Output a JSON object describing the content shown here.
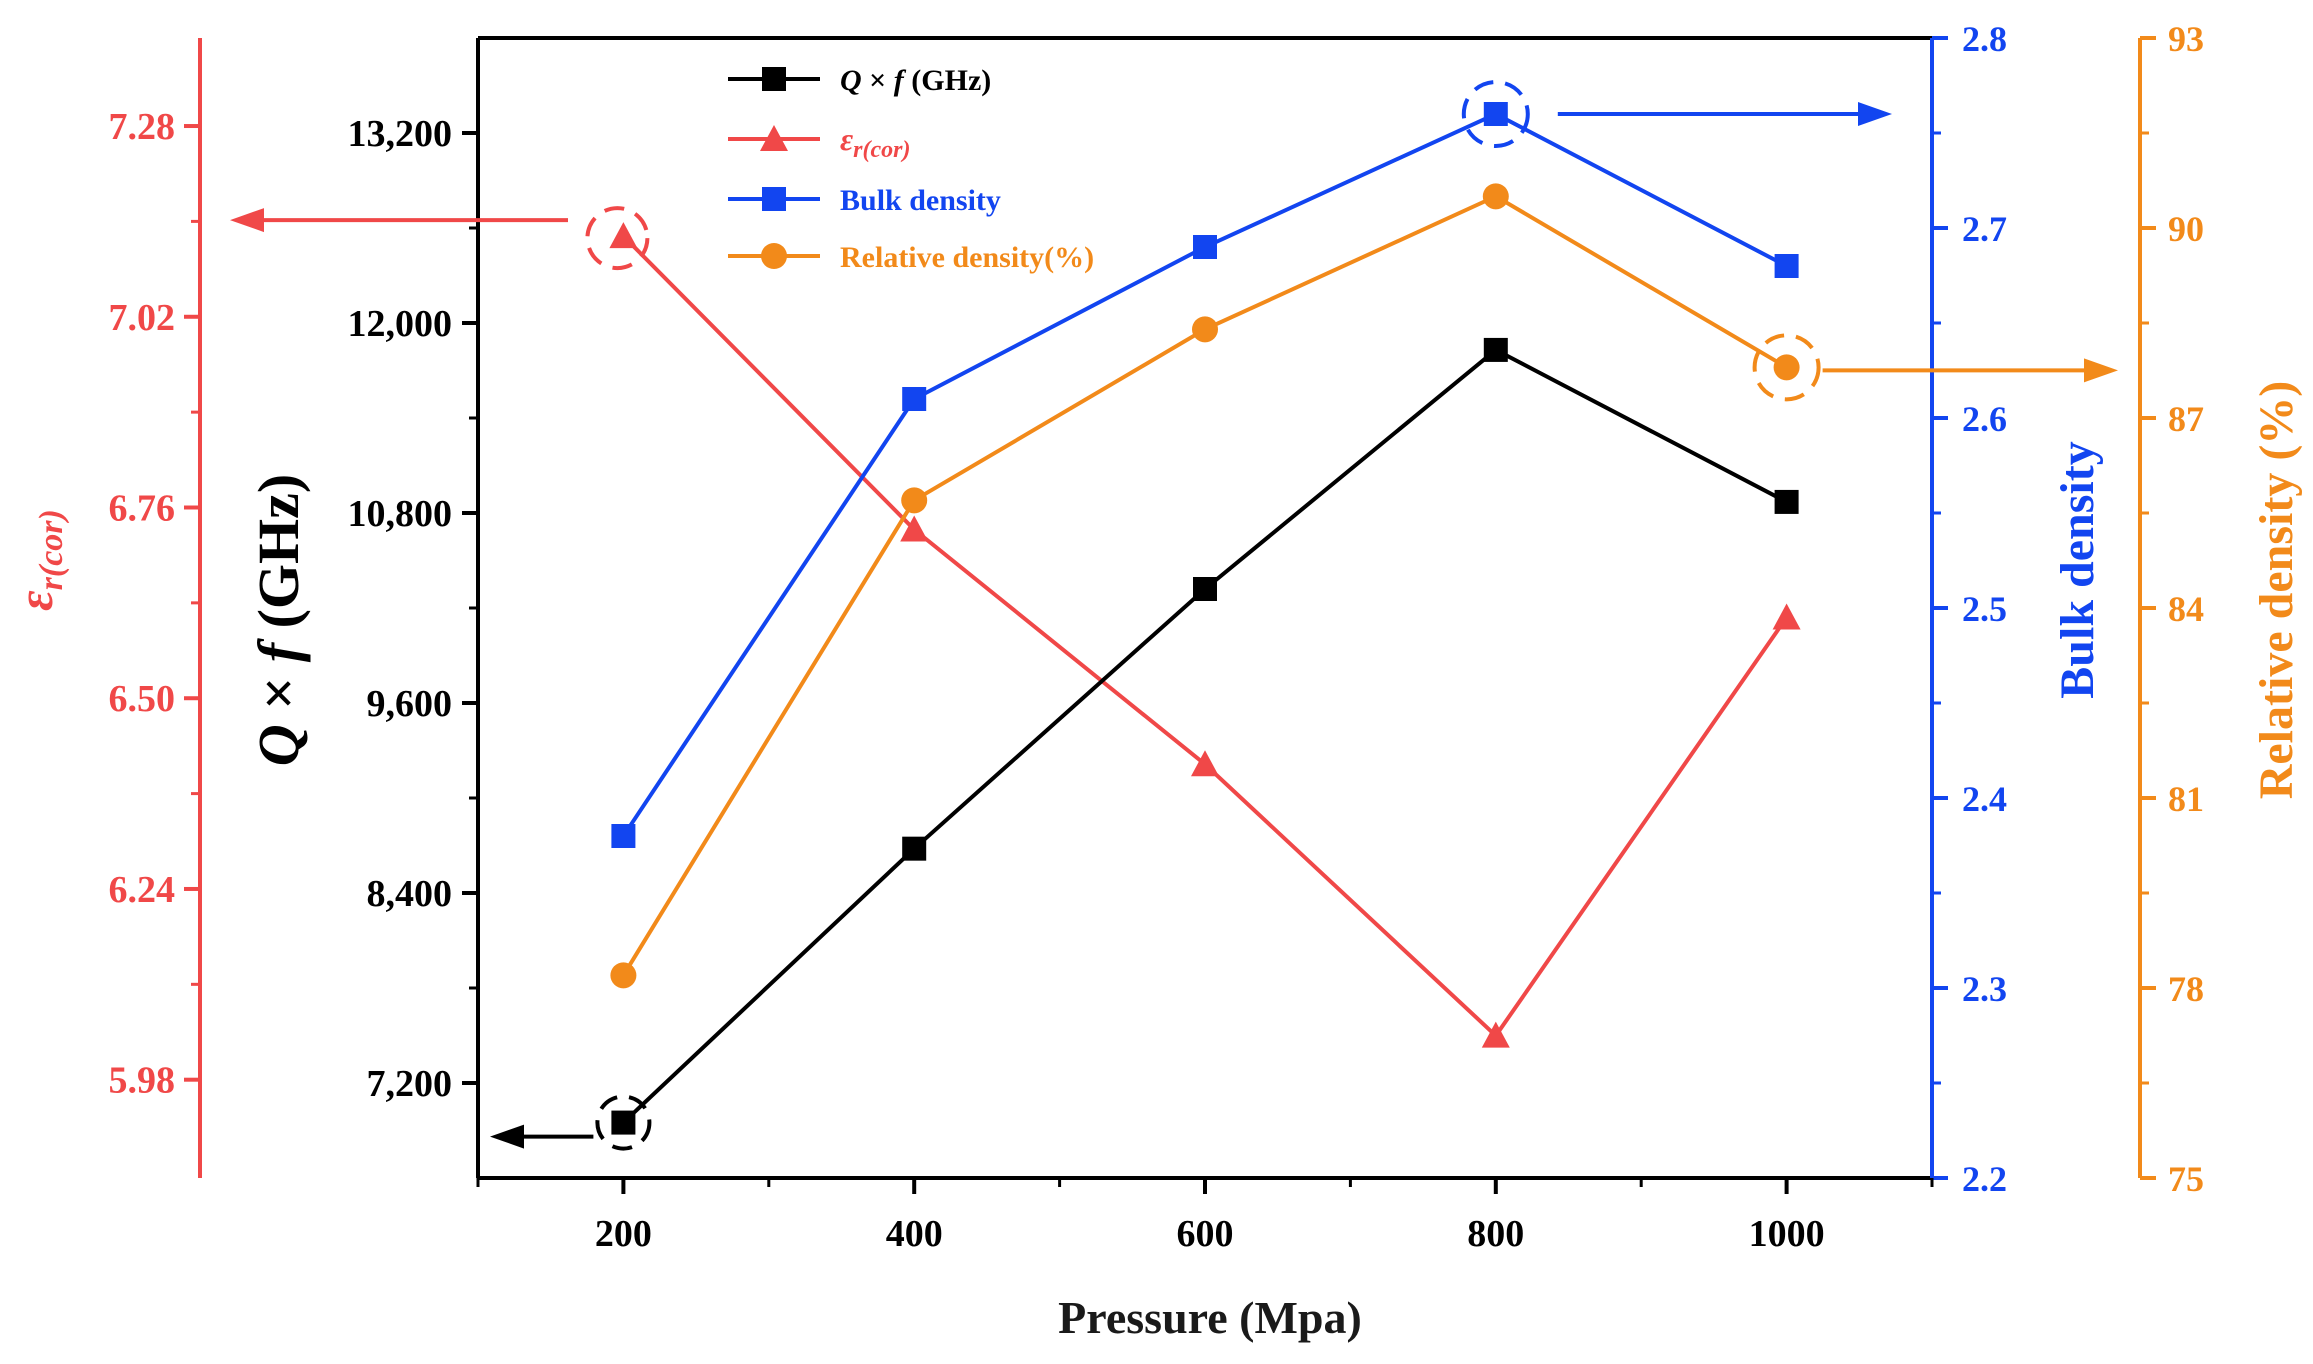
{
  "colors": {
    "qf": "#000000",
    "er": "#f04848",
    "bulk": "#1245f0",
    "rel": "#f28a1a"
  },
  "chart_data": {
    "type": "line",
    "x": [
      200,
      400,
      600,
      800,
      1000
    ],
    "xlabel": "Pressure (Mpa)",
    "xlim": [
      100,
      1100
    ],
    "xticks": [
      "200",
      "400",
      "600",
      "800",
      "1000"
    ],
    "series": [
      {
        "key": "qf",
        "name_pre": "Q",
        "name_mid": " × ",
        "name_post": "f",
        "name_unit": " (GHz)",
        "marker": "square",
        "values": [
          6950,
          8680,
          10320,
          11830,
          10870
        ],
        "axis": {
          "ylabel_pre": "Q",
          "ylabel_mid": " × ",
          "ylabel_post": "f",
          "ylabel_unit": " (GHz)",
          "ylim": [
            6600,
            13800
          ],
          "ticks": [
            "7,200",
            "8,400",
            "9,600",
            "10,800",
            "12,000",
            "13,200"
          ],
          "tick_values": [
            7200,
            8400,
            9600,
            10800,
            12000,
            13200
          ]
        }
      },
      {
        "key": "er",
        "name_sym": "ε",
        "name_sub": "r(cor)",
        "marker": "triangle",
        "values": [
          7.13,
          6.73,
          6.41,
          6.04,
          6.61
        ],
        "axis": {
          "ylabel_sym": "ε",
          "ylabel_sub": "r(cor)",
          "ylim": [
            5.846,
            7.4
          ],
          "ticks": [
            "5.98",
            "6.24",
            "6.50",
            "6.76",
            "7.02",
            "7.28"
          ],
          "tick_values": [
            5.98,
            6.24,
            6.5,
            6.76,
            7.02,
            7.28
          ]
        }
      },
      {
        "key": "bulk",
        "name": "Bulk density",
        "marker": "square",
        "values": [
          2.38,
          2.61,
          2.69,
          2.76,
          2.68
        ],
        "axis": {
          "ylabel": "Bulk density",
          "ylim": [
            2.2,
            2.8
          ],
          "ticks": [
            "2.2",
            "2.3",
            "2.4",
            "2.5",
            "2.6",
            "2.7",
            "2.8"
          ],
          "tick_values": [
            2.2,
            2.3,
            2.4,
            2.5,
            2.6,
            2.7,
            2.8
          ]
        }
      },
      {
        "key": "rel",
        "name": "Relative density(%)",
        "marker": "circle",
        "values": [
          78.2,
          85.7,
          88.4,
          90.5,
          87.8
        ],
        "axis": {
          "ylabel": "Relative density (%)",
          "ylim": [
            75,
            93
          ],
          "ticks": [
            "75",
            "78",
            "81",
            "84",
            "87",
            "90",
            "93"
          ],
          "tick_values": [
            75,
            78,
            81,
            84,
            87,
            90,
            93
          ]
        }
      }
    ],
    "legend_position": "top-left"
  }
}
